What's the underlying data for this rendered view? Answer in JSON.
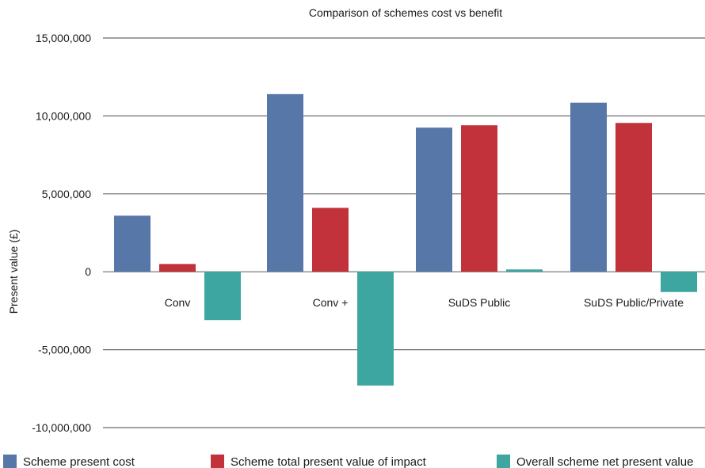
{
  "chart_data": {
    "type": "bar",
    "title": "Comparison of schemes cost vs benefit",
    "xlabel": "",
    "ylabel": "Present value (£)",
    "ylim": [
      -10000000,
      15000000
    ],
    "yticks": [
      15000000,
      10000000,
      5000000,
      0,
      -5000000,
      -10000000
    ],
    "ytick_labels": [
      "15,000,000",
      "10,000,000",
      "5,000,000",
      "0",
      "-5,000,000",
      "-10,000,000"
    ],
    "grid": true,
    "legend_position": "bottom",
    "categories": [
      "Conv",
      "Conv +",
      "SuDS Public",
      "SuDS Public/Private"
    ],
    "series": [
      {
        "name": "Scheme present cost",
        "color": "#5877a9",
        "values": [
          3600000,
          11400000,
          9250000,
          10850000
        ]
      },
      {
        "name": "Scheme total present value of impact",
        "color": "#c1323a",
        "values": [
          500000,
          4100000,
          9400000,
          9550000
        ]
      },
      {
        "name": "Overall scheme net present value",
        "color": "#3ea6a1",
        "values": [
          -3100000,
          -7300000,
          150000,
          -1300000
        ]
      }
    ]
  }
}
